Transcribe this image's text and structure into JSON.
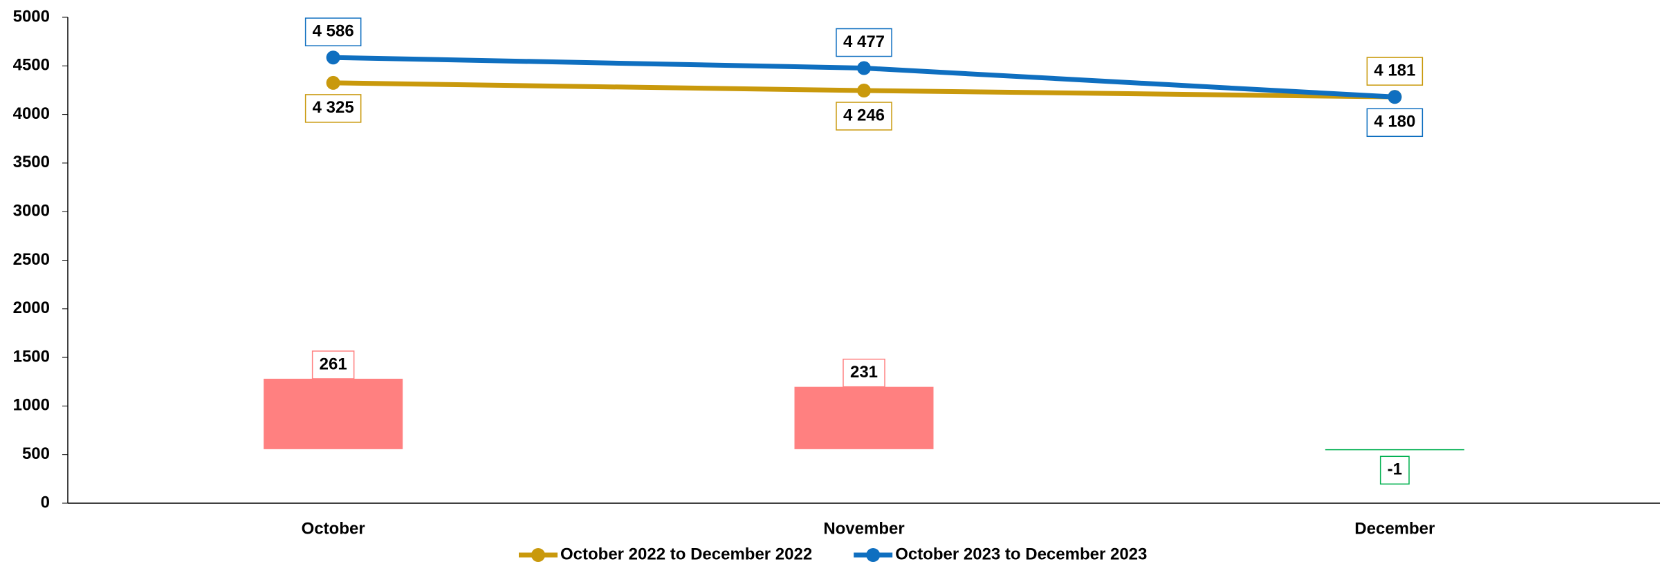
{
  "chart_data": {
    "type": "line",
    "categories": [
      "October",
      "November",
      "December"
    ],
    "series": [
      {
        "name": "October 2022 to December 2022",
        "color": "#c9990c",
        "values": [
          4325,
          4246,
          4181
        ],
        "value_labels": [
          "4 325",
          "4 246",
          "4 181"
        ]
      },
      {
        "name": "October 2023 to December 2023",
        "color": "#0f6fc0",
        "values": [
          4586,
          4477,
          4180
        ],
        "value_labels": [
          "4 586",
          "4 477",
          "4 180"
        ]
      }
    ],
    "difference": {
      "type": "bar",
      "axis": "y2",
      "values": [
        261,
        231,
        -1
      ],
      "positive_color": "#ff8080",
      "positive_label_color": "#e00000",
      "negative_color": "#00b050",
      "negative_label_color": "#00a040"
    },
    "ylim": [
      0,
      5000
    ],
    "yticks": [
      0,
      500,
      1000,
      1500,
      2000,
      2500,
      3000,
      3500,
      4000,
      4500,
      5000
    ],
    "y2lim": [
      -200,
      1600
    ],
    "legend": "bottom"
  }
}
